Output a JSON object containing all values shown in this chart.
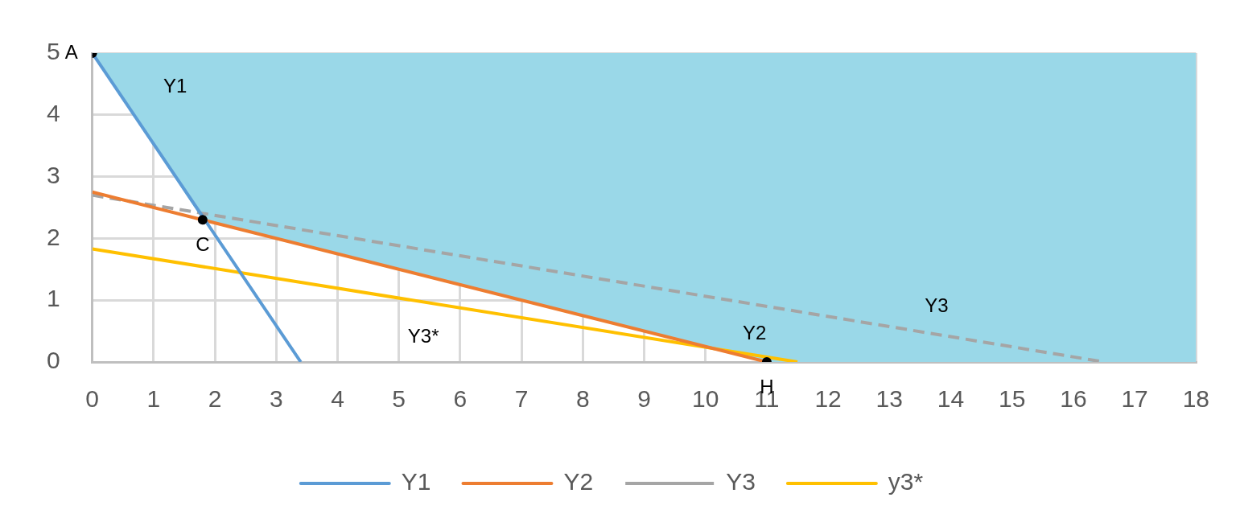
{
  "chart_data": {
    "type": "line",
    "xlim": [
      0,
      18
    ],
    "ylim": [
      0,
      5
    ],
    "xticks": [
      0,
      1,
      2,
      3,
      4,
      5,
      6,
      7,
      8,
      9,
      10,
      11,
      12,
      13,
      14,
      15,
      16,
      17,
      18
    ],
    "yticks": [
      0,
      1,
      2,
      3,
      4,
      5
    ],
    "grid": true,
    "legend": "bottom",
    "marker": "none",
    "series": [
      {
        "type": "area",
        "color": "#9ad8e8",
        "x": [
          0,
          1.8,
          11,
          18,
          18,
          0
        ],
        "values": [
          5,
          2.3,
          0,
          0,
          5,
          5
        ]
      },
      {
        "name": "Y1",
        "color": "#5b9bd5",
        "x": [
          0,
          3.4
        ],
        "values": [
          5,
          0
        ]
      },
      {
        "name": "Y2",
        "color": "#ed7d31",
        "x": [
          0,
          11
        ],
        "values": [
          2.75,
          0
        ]
      },
      {
        "name": "Y3",
        "color": "#a5a5a5",
        "line_style": "dashed",
        "x": [
          0,
          16.5
        ],
        "values": [
          2.7,
          0
        ]
      },
      {
        "name": "y3*",
        "color": "#ffc000",
        "x": [
          0,
          11.5
        ],
        "values": [
          1.83,
          0
        ]
      },
      {
        "type": "scatter",
        "color": "#000000",
        "marker": "circle",
        "x": [
          0,
          1.8,
          11
        ],
        "values": [
          5,
          2.3,
          0
        ]
      }
    ],
    "annotations": [
      {
        "text": "A",
        "x": 0,
        "y": 5
      },
      {
        "text": "C",
        "x": 1.8,
        "y": 2.3
      },
      {
        "text": "H",
        "x": 11,
        "y": 0
      },
      "Y1",
      "Y3*",
      "Y2",
      "Y3"
    ]
  }
}
